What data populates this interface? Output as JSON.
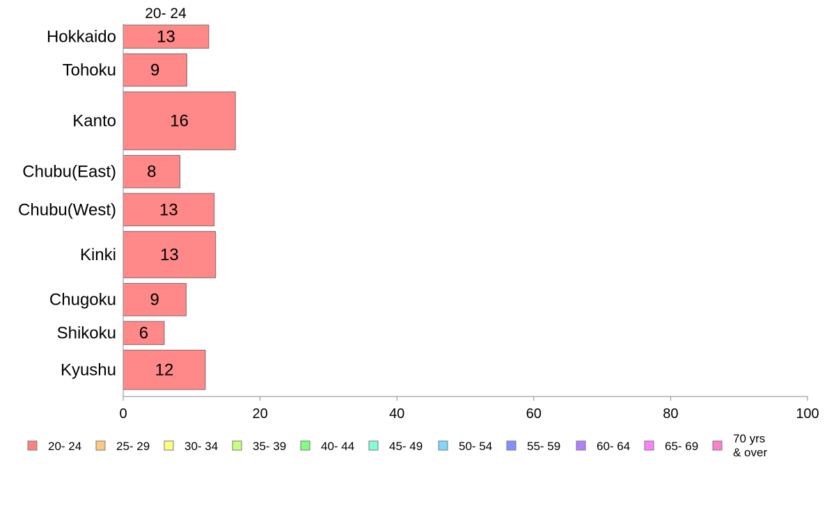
{
  "chart_data": {
    "type": "bar",
    "orientation": "horizontal",
    "column_header": "20- 24",
    "categories": [
      "Hokkaido",
      "Tohoku",
      "Kanto",
      "Chubu(East)",
      "Chubu(West)",
      "Kinki",
      "Chugoku",
      "Shikoku",
      "Kyushu"
    ],
    "series": [
      {
        "name": "20- 24",
        "color": "#ff8888",
        "values": [
          12.5,
          9.3,
          16.4,
          8.3,
          13.3,
          13.5,
          9.2,
          6.0,
          12.0
        ],
        "labels": [
          "13",
          "9",
          "16",
          "8",
          "13",
          "13",
          "9",
          "6",
          "12"
        ]
      }
    ],
    "bar_widths": [
      1.0,
      1.4,
      2.5,
      1.4,
      1.4,
      2.0,
      1.4,
      1.0,
      1.7
    ],
    "xlim": [
      0,
      100
    ],
    "xticks": [
      0,
      20,
      40,
      60,
      80,
      100
    ],
    "xlabel": "",
    "ylabel": "",
    "grid": false,
    "legend_position": "bottom",
    "legend": [
      {
        "label": "20- 24",
        "color": "#ff8080"
      },
      {
        "label": "25- 29",
        "color": "#ffc880"
      },
      {
        "label": "30- 34",
        "color": "#ffff80"
      },
      {
        "label": "35- 39",
        "color": "#c8ff80"
      },
      {
        "label": "40- 44",
        "color": "#80ff80"
      },
      {
        "label": "45- 49",
        "color": "#80ffd8"
      },
      {
        "label": "50- 54",
        "color": "#80d8ff"
      },
      {
        "label": "55- 59",
        "color": "#8090ff"
      },
      {
        "label": "60- 64",
        "color": "#b080ff"
      },
      {
        "label": "65- 69",
        "color": "#ff80ff"
      },
      {
        "label": "70 yrs\n& over",
        "color": "#ff80c8"
      }
    ]
  }
}
